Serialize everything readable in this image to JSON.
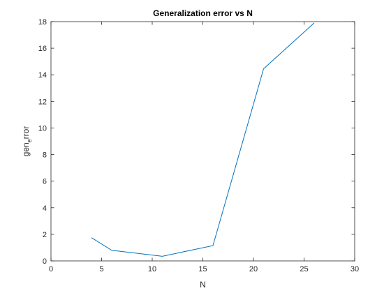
{
  "chart_data": {
    "type": "line",
    "title": "Generalization error vs N",
    "xlabel": "N",
    "ylabel_parts": {
      "base": "gen",
      "sub": "e",
      "rest": "rror"
    },
    "xlim": [
      0,
      30
    ],
    "ylim": [
      0,
      18
    ],
    "xticks": [
      0,
      5,
      10,
      15,
      20,
      25,
      30
    ],
    "yticks": [
      0,
      2,
      4,
      6,
      8,
      10,
      12,
      14,
      16,
      18
    ],
    "grid": false,
    "series": [
      {
        "x": [
          4,
          6,
          11,
          16,
          21,
          26
        ],
        "y": [
          1.75,
          0.8,
          0.35,
          1.15,
          14.45,
          17.9
        ],
        "color": "#0072BD"
      }
    ]
  }
}
